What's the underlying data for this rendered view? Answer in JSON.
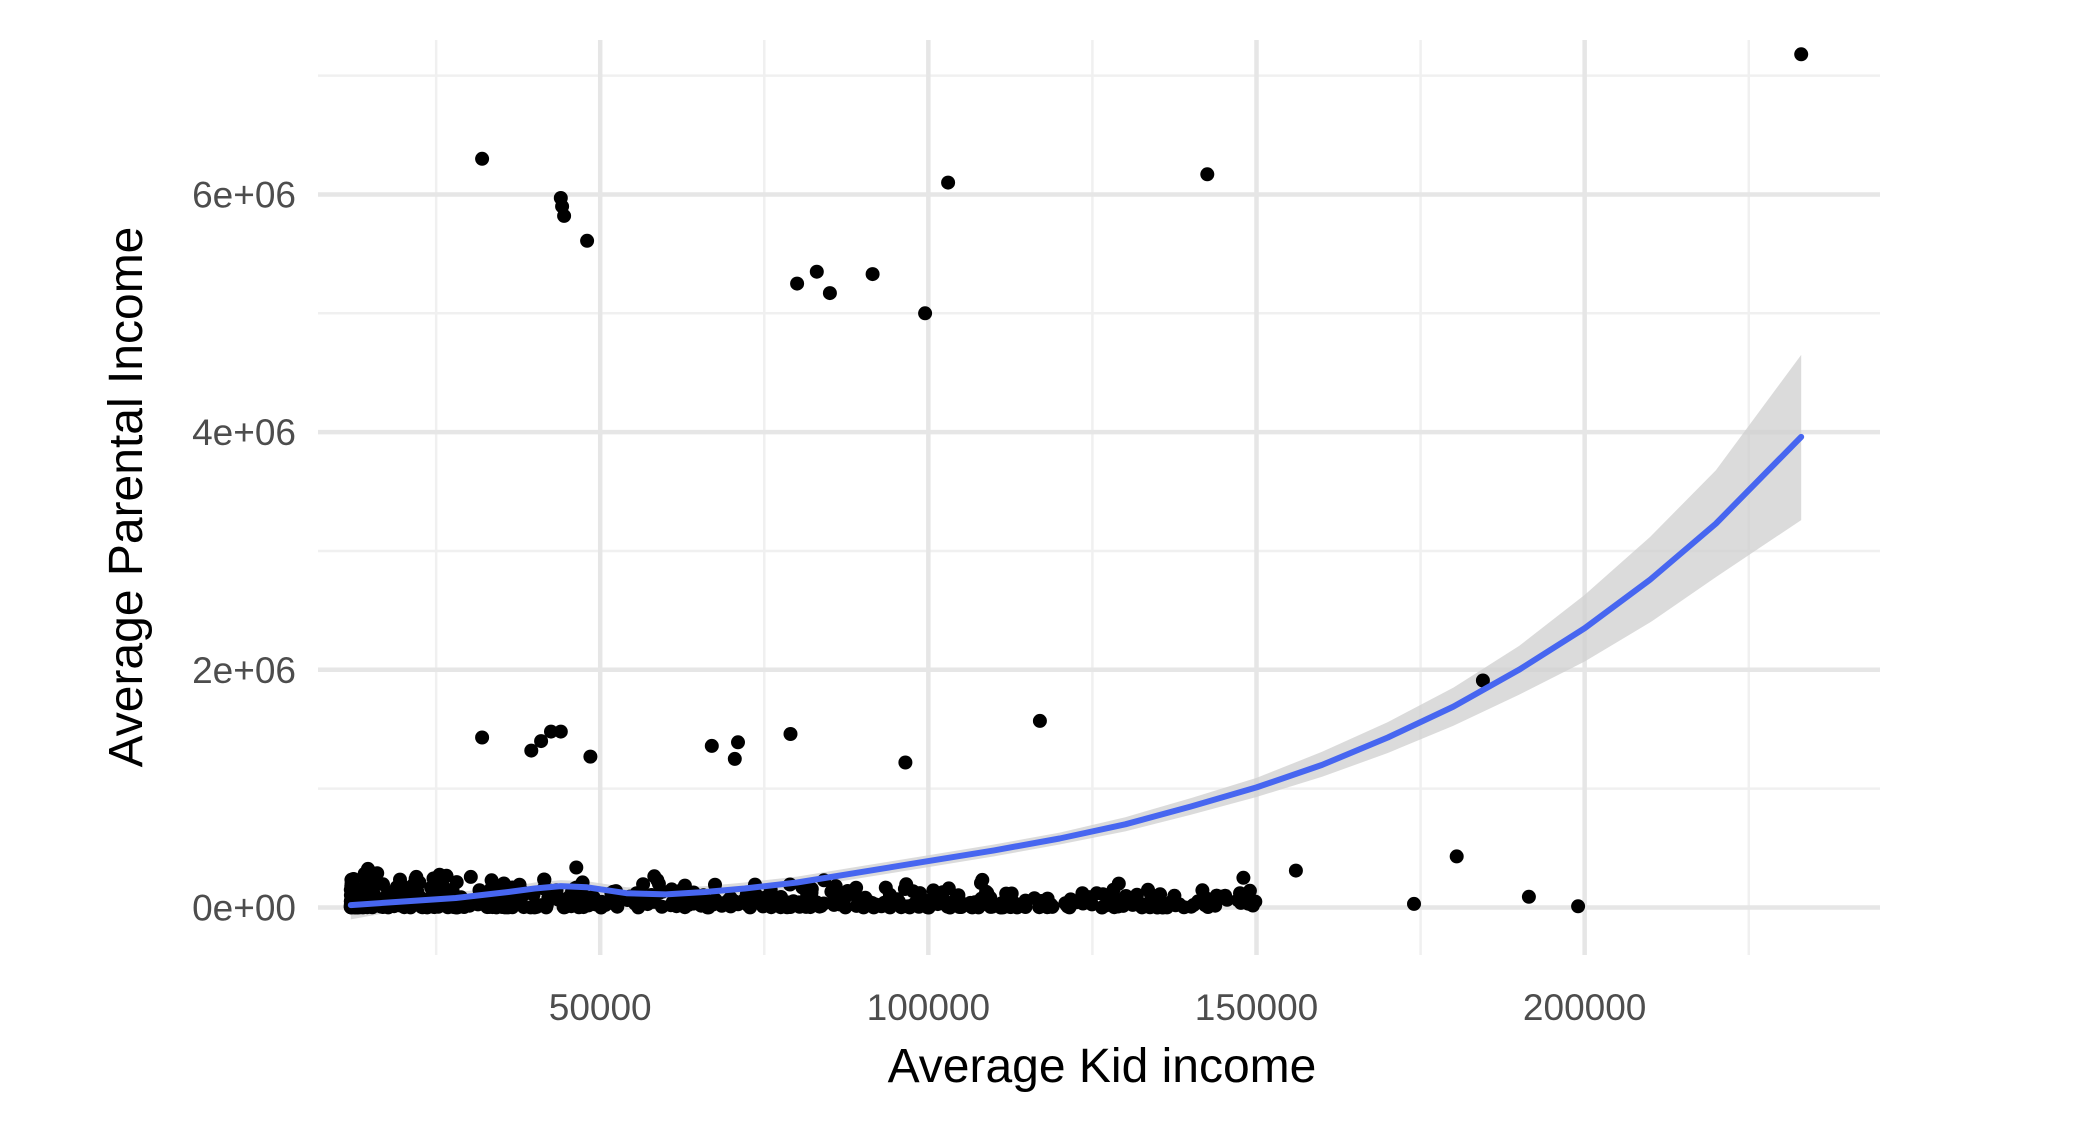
{
  "chart_data": {
    "type": "scatter",
    "title": "",
    "xlabel": "Average Kid income",
    "ylabel": "Average Parental Income",
    "xlim": [
      7000,
      245000
    ],
    "ylim": [
      -400000,
      7300000
    ],
    "x_ticks": [
      50000,
      100000,
      150000,
      200000
    ],
    "x_tick_labels": [
      "50000",
      "100000",
      "150000",
      "200000"
    ],
    "y_ticks": [
      0,
      2000000,
      4000000,
      6000000
    ],
    "y_tick_labels": [
      "0e+00",
      "2e+06",
      "4e+06",
      "6e+06"
    ],
    "grid": true,
    "legend": "none",
    "colors": {
      "points": "#000000",
      "smooth_line": "#4766f0",
      "confidence_band": "#cfcfcf"
    },
    "series": [
      {
        "type": "points",
        "x": [
          32000,
          44000,
          44200,
          44500,
          48000,
          80000,
          83000,
          85000,
          91500,
          99500,
          103000,
          142500,
          233000,
          32000,
          39500,
          41000,
          42500,
          44000,
          48500,
          67000,
          70500,
          71000,
          79000,
          96500,
          117000,
          184500,
          174000,
          180500,
          191500,
          199000,
          156000,
          148000,
          149000
        ],
        "y": [
          6300000,
          5970000,
          5900000,
          5820000,
          5610000,
          5250000,
          5350000,
          5170000,
          5330000,
          5000000,
          6100000,
          6170000,
          7180000,
          1430000,
          1320000,
          1400000,
          1480000,
          1480000,
          1270000,
          1360000,
          1250000,
          1390000,
          1460000,
          1220000,
          1570000,
          1910000,
          30000,
          430000,
          90000,
          10000,
          310000,
          250000,
          140000
        ]
      },
      {
        "type": "dense-cluster",
        "x_range": [
          12000,
          150000
        ],
        "y_range": [
          0,
          420000
        ],
        "count": 600
      },
      {
        "type": "smooth",
        "x": [
          12000,
          20000,
          28000,
          36000,
          40000,
          44000,
          48000,
          54000,
          60000,
          66000,
          72000,
          80000,
          90000,
          100000,
          110000,
          120000,
          130000,
          140000,
          150000,
          160000,
          170000,
          180000,
          190000,
          200000,
          210000,
          220000,
          233000
        ],
        "y": [
          20000,
          50000,
          80000,
          130000,
          160000,
          180000,
          170000,
          120000,
          110000,
          130000,
          160000,
          210000,
          300000,
          390000,
          480000,
          580000,
          700000,
          850000,
          1010000,
          1200000,
          1430000,
          1690000,
          2000000,
          2350000,
          2760000,
          3230000,
          3960000
        ],
        "lower": [
          -100000,
          -20000,
          30000,
          90000,
          120000,
          130000,
          120000,
          80000,
          70000,
          90000,
          110000,
          160000,
          250000,
          340000,
          430000,
          530000,
          640000,
          780000,
          930000,
          1100000,
          1300000,
          1530000,
          1790000,
          2070000,
          2400000,
          2780000,
          3260000
        ],
        "upper": [
          120000,
          120000,
          130000,
          170000,
          210000,
          230000,
          220000,
          170000,
          160000,
          180000,
          210000,
          260000,
          350000,
          440000,
          530000,
          630000,
          760000,
          920000,
          1090000,
          1310000,
          1560000,
          1850000,
          2200000,
          2630000,
          3120000,
          3680000,
          4650000
        ]
      }
    ]
  }
}
